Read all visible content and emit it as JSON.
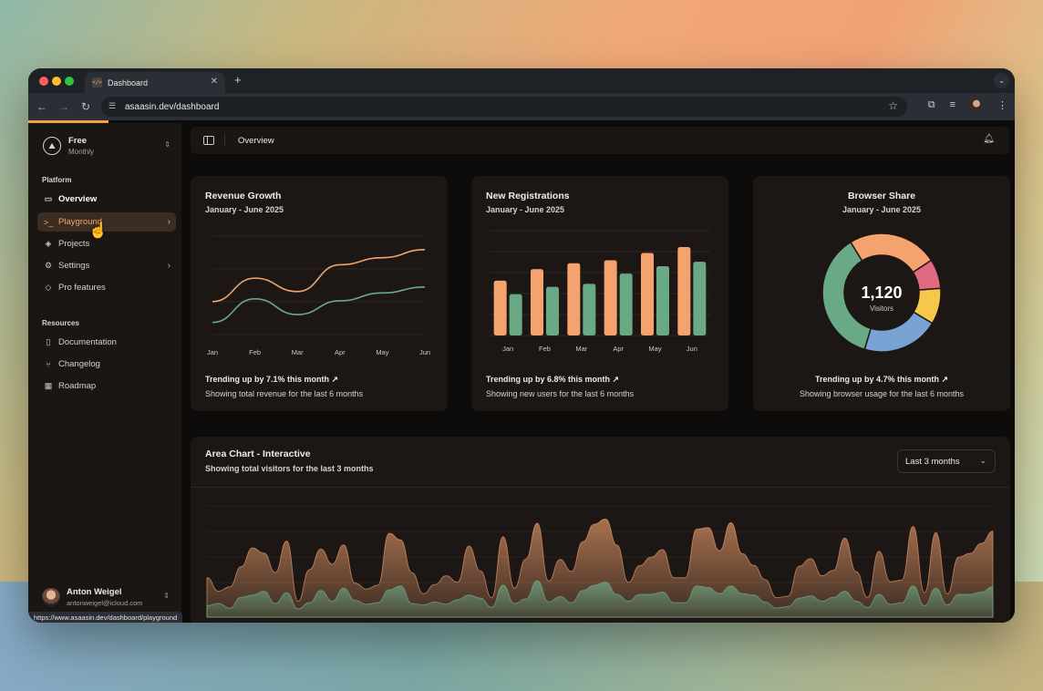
{
  "browser": {
    "tab_title": "Dashboard",
    "favicon_text": "</>",
    "url": "asaasin.dev/dashboard",
    "status_url": "https://www.asaasin.dev/dashboard/playground"
  },
  "sidebar": {
    "plan_name": "Free",
    "plan_sub": "Monthly",
    "platform_label": "Platform",
    "platform_items": [
      {
        "label": "Overview",
        "icon": "monitor-icon"
      },
      {
        "label": "Playground",
        "icon": "terminal-icon"
      },
      {
        "label": "Projects",
        "icon": "layers-icon"
      },
      {
        "label": "Settings",
        "icon": "sliders-icon"
      },
      {
        "label": "Pro features",
        "icon": "gem-icon"
      }
    ],
    "resources_label": "Resources",
    "resource_items": [
      {
        "label": "Documentation",
        "icon": "book-icon"
      },
      {
        "label": "Changelog",
        "icon": "git-icon"
      },
      {
        "label": "Roadmap",
        "icon": "map-icon"
      }
    ],
    "user_name": "Anton Weigel",
    "user_email": "antonweigel@icloud.com"
  },
  "header": {
    "title": "Overview"
  },
  "cards": {
    "revenue": {
      "title": "Revenue Growth",
      "subtitle": "January - June 2025",
      "trend": "Trending up by 7.1% this month",
      "caption": "Showing total revenue for the last 6 months"
    },
    "registrations": {
      "title": "New Registrations",
      "subtitle": "January - June 2025",
      "trend": "Trending up by 6.8% this month",
      "caption": "Showing new users for the last 6 months"
    },
    "browser": {
      "title": "Browser Share",
      "subtitle": "January - June 2025",
      "center_value": "1,120",
      "center_label": "Visitors",
      "trend": "Trending up by 4.7% this month",
      "caption": "Showing browser usage for the last 6 months"
    },
    "area": {
      "title": "Area Chart - Interactive",
      "subtitle": "Showing total visitors for the last 3 months",
      "range_select": "Last 3 months"
    }
  },
  "colors": {
    "orange": "#f4a26e",
    "green": "#6aa985",
    "blue": "#78a3d4",
    "yellow": "#f5c74a",
    "pink": "#e06a82"
  },
  "chart_data": [
    {
      "type": "line",
      "categories": [
        "Jan",
        "Feb",
        "Mar",
        "Apr",
        "May",
        "Jun"
      ],
      "series": [
        {
          "values": [
            186,
            305,
            237,
            373,
            409,
            450
          ]
        },
        {
          "values": [
            80,
            200,
            120,
            190,
            230,
            260
          ]
        }
      ],
      "grid": true
    },
    {
      "type": "bar",
      "categories": [
        "Jan",
        "Feb",
        "Mar",
        "Apr",
        "May",
        "Jun"
      ],
      "series": [
        {
          "values": [
            186,
            225,
            245,
            255,
            280,
            300
          ]
        },
        {
          "values": [
            140,
            165,
            175,
            210,
            235,
            250
          ]
        }
      ],
      "ylim": [
        0,
        300
      ],
      "grid": true
    },
    {
      "type": "pie",
      "slices": [
        {
          "value": 275,
          "color": "#f4a26e"
        },
        {
          "value": 90,
          "color": "#e06a82"
        },
        {
          "value": 110,
          "color": "#f5c74a"
        },
        {
          "value": 235,
          "color": "#78a3d4"
        },
        {
          "value": 410,
          "color": "#6aa985"
        }
      ],
      "total": 1120
    },
    {
      "type": "area",
      "series": [
        {
          "values": [
            222,
            97,
            167,
            242,
            373,
            301,
            245,
            409,
            59,
            261,
            327,
            292,
            342,
            137,
            120,
            138,
            446,
            364,
            243,
            89,
            137,
            224,
            138,
            387,
            215,
            75,
            383,
            122,
            315,
            454,
            165,
            293,
            247,
            385,
            481,
            498,
            388,
            149,
            227,
            293,
            335,
            197,
            197,
            448,
            473,
            338,
            499,
            315,
            235,
            177,
            82,
            81,
            252,
            294,
            201,
            213,
            420,
            233,
            78,
            340,
            178,
            178,
            470,
            103,
            439,
            88,
            294,
            323,
            385,
            438
          ]
        },
        {
          "values": [
            150,
            180,
            120,
            260,
            290,
            340,
            180,
            320,
            110,
            190,
            350,
            210,
            380,
            220,
            170,
            190,
            360,
            410,
            180,
            160,
            200,
            170,
            230,
            290,
            250,
            130,
            420,
            180,
            240,
            480,
            200,
            270,
            190,
            350,
            420,
            460,
            300,
            210,
            300,
            300,
            330,
            190,
            190,
            410,
            390,
            310,
            410,
            310,
            290,
            200,
            120,
            140,
            250,
            280,
            210,
            260,
            340,
            210,
            130,
            300,
            170,
            190,
            410,
            150,
            380,
            160,
            300,
            300,
            330,
            400
          ]
        }
      ]
    }
  ]
}
